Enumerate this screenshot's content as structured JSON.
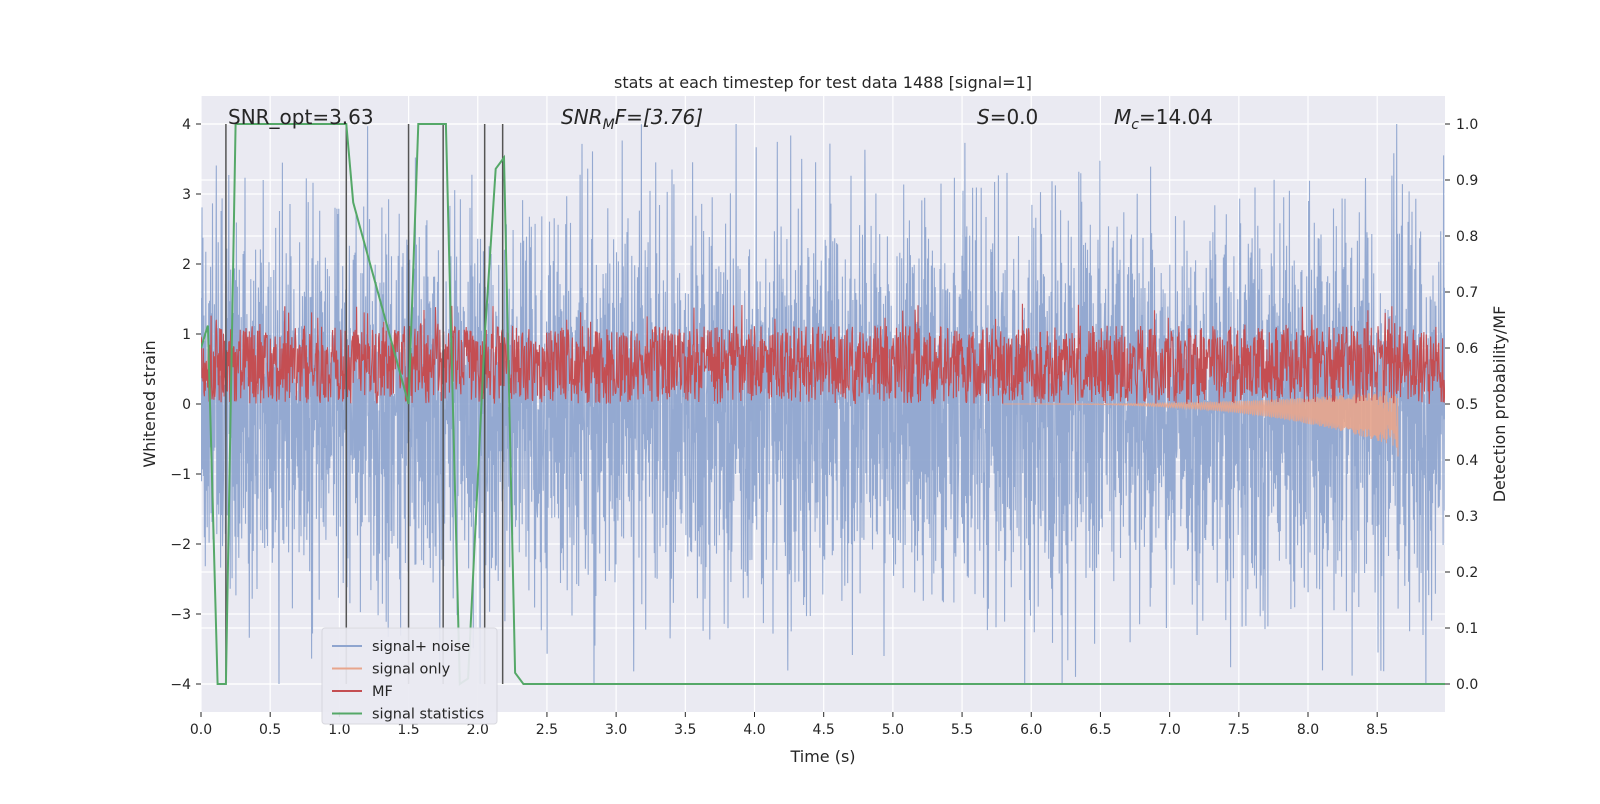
{
  "chart_data": {
    "type": "line",
    "title": "stats at each timestep for test data 1488 [signal=1]",
    "xlabel": "Time (s)",
    "ylabel_left": "Whitened strain",
    "ylabel_right": "Detection probability/MF",
    "xlim": [
      0.0,
      8.99
    ],
    "ylim_left": [
      -4.4,
      4.4
    ],
    "ylim_right": [
      -0.05,
      1.05
    ],
    "xticks": [
      "0.0",
      "0.5",
      "1.0",
      "1.5",
      "2.0",
      "2.5",
      "3.0",
      "3.5",
      "4.0",
      "4.5",
      "5.0",
      "5.5",
      "6.0",
      "6.5",
      "7.0",
      "7.5",
      "8.0",
      "8.5"
    ],
    "xtick_values": [
      0.0,
      0.5,
      1.0,
      1.5,
      2.0,
      2.5,
      3.0,
      3.5,
      4.0,
      4.5,
      5.0,
      5.5,
      6.0,
      6.5,
      7.0,
      7.5,
      8.0,
      8.5
    ],
    "yticks_left": [
      "−4",
      "−3",
      "−2",
      "−1",
      "0",
      "1",
      "2",
      "3",
      "4"
    ],
    "ytick_values_left": [
      -4,
      -3,
      -2,
      -1,
      0,
      1,
      2,
      3,
      4
    ],
    "yticks_right": [
      "0.0",
      "0.1",
      "0.2",
      "0.3",
      "0.4",
      "0.5",
      "0.6",
      "0.7",
      "0.8",
      "0.9",
      "1.0"
    ],
    "ytick_values_right": [
      0.0,
      0.1,
      0.2,
      0.3,
      0.4,
      0.5,
      0.6,
      0.7,
      0.8,
      0.9,
      1.0
    ],
    "grid": true,
    "legend_position": "lower-left",
    "annotations": {
      "snr_opt": "SNR_opt=3.63",
      "snr_mf_sym": "SNR",
      "snr_mf_sub": "M",
      "snr_mf_rest": "F=[3.76]",
      "s_sym": "S",
      "s_rest": "=0.0",
      "mc_sym": "M",
      "mc_sub": "c",
      "mc_rest": "=14.04"
    },
    "series": [
      {
        "name": "signal+ noise",
        "color": "#8fa5cf",
        "axis": "left",
        "style": "dense noise, amplitude approx ±2 with peaks to ±4",
        "envelope_approx": {
          "typical_abs": 1.9,
          "extreme_min": -4.0,
          "extreme_max": 4.0
        }
      },
      {
        "name": "signal only",
        "color": "#e8a58c",
        "axis": "left",
        "style": "chirp growing toward merger near t=8.65 s",
        "chirp": {
          "start_time": 5.8,
          "end_time": 8.65,
          "min_value_at_end": -0.75
        }
      },
      {
        "name": "MF",
        "color": "#c44e52",
        "axis": "right",
        "style": "noisy band around 0.55-0.6 on right axis",
        "band_approx": {
          "low": 0.5,
          "high": 0.64
        }
      },
      {
        "name": "signal statistics",
        "color": "#55a868",
        "axis": "right",
        "x": [
          0.0,
          0.05,
          0.12,
          0.18,
          0.25,
          0.3,
          1.05,
          1.1,
          1.5,
          1.57,
          1.77,
          1.87,
          1.93,
          2.05,
          2.13,
          2.19,
          2.27,
          2.33,
          8.99
        ],
        "y": [
          0.6,
          0.64,
          0.0,
          0.0,
          1.0,
          1.0,
          1.0,
          0.86,
          0.5,
          1.0,
          1.0,
          0.0,
          0.01,
          0.62,
          0.92,
          0.94,
          0.02,
          0.0,
          0.0
        ]
      }
    ],
    "vertical_lines": {
      "color": "#555555",
      "x": [
        0.18,
        1.05,
        1.5,
        1.75,
        2.05,
        2.18
      ],
      "ytop_left": 4.0,
      "ybottom_left": -4.0
    }
  }
}
